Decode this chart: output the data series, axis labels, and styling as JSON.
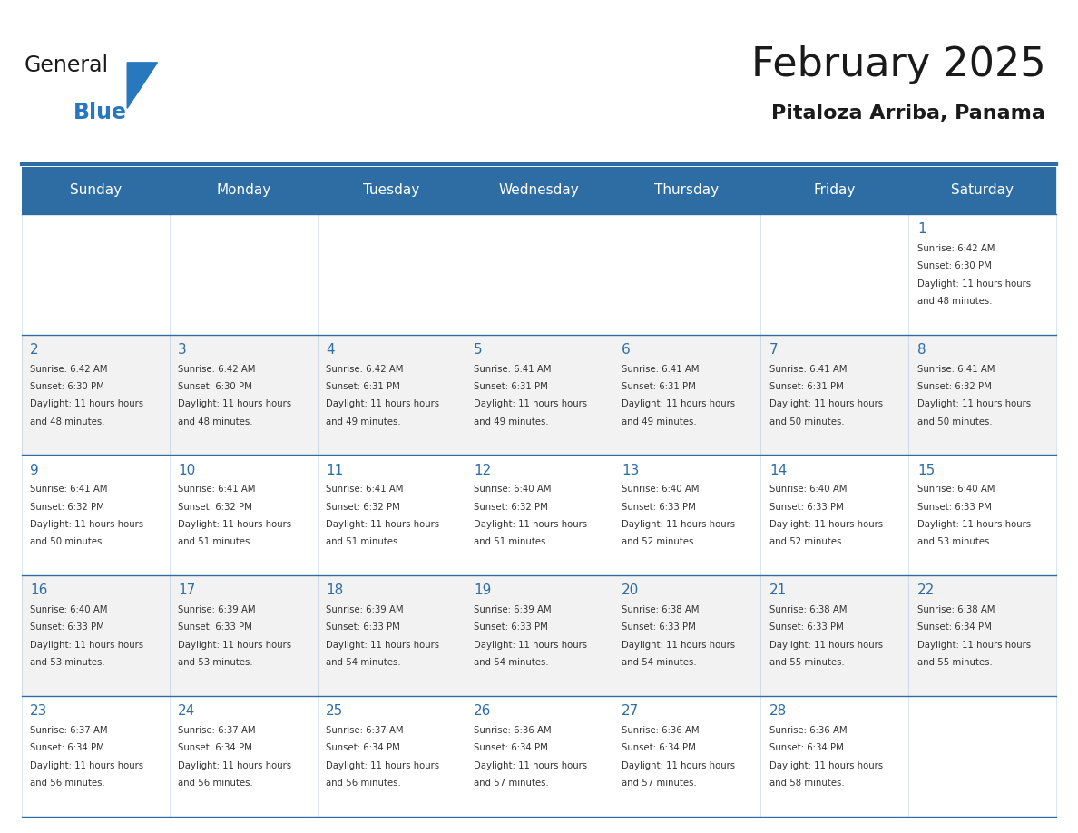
{
  "title": "February 2025",
  "subtitle": "Pitaloza Arriba, Panama",
  "days_of_week": [
    "Sunday",
    "Monday",
    "Tuesday",
    "Wednesday",
    "Thursday",
    "Friday",
    "Saturday"
  ],
  "header_bg": "#2E6DA4",
  "header_text": "#FFFFFF",
  "bg_color": "#FFFFFF",
  "cell_bg_odd": "#F2F2F2",
  "cell_bg_even": "#FFFFFF",
  "line_color": "#2E6DA4",
  "title_color": "#1a1a1a",
  "subtitle_color": "#1a1a1a",
  "text_color": "#333333",
  "day_number_color": "#2E6DA4",
  "calendar": [
    [
      null,
      null,
      null,
      null,
      null,
      null,
      {
        "day": 1,
        "sunrise": "6:42 AM",
        "sunset": "6:30 PM",
        "daylight": "11 hours and 48 minutes"
      }
    ],
    [
      {
        "day": 2,
        "sunrise": "6:42 AM",
        "sunset": "6:30 PM",
        "daylight": "11 hours and 48 minutes"
      },
      {
        "day": 3,
        "sunrise": "6:42 AM",
        "sunset": "6:30 PM",
        "daylight": "11 hours and 48 minutes"
      },
      {
        "day": 4,
        "sunrise": "6:42 AM",
        "sunset": "6:31 PM",
        "daylight": "11 hours and 49 minutes"
      },
      {
        "day": 5,
        "sunrise": "6:41 AM",
        "sunset": "6:31 PM",
        "daylight": "11 hours and 49 minutes"
      },
      {
        "day": 6,
        "sunrise": "6:41 AM",
        "sunset": "6:31 PM",
        "daylight": "11 hours and 49 minutes"
      },
      {
        "day": 7,
        "sunrise": "6:41 AM",
        "sunset": "6:31 PM",
        "daylight": "11 hours and 50 minutes"
      },
      {
        "day": 8,
        "sunrise": "6:41 AM",
        "sunset": "6:32 PM",
        "daylight": "11 hours and 50 minutes"
      }
    ],
    [
      {
        "day": 9,
        "sunrise": "6:41 AM",
        "sunset": "6:32 PM",
        "daylight": "11 hours and 50 minutes"
      },
      {
        "day": 10,
        "sunrise": "6:41 AM",
        "sunset": "6:32 PM",
        "daylight": "11 hours and 51 minutes"
      },
      {
        "day": 11,
        "sunrise": "6:41 AM",
        "sunset": "6:32 PM",
        "daylight": "11 hours and 51 minutes"
      },
      {
        "day": 12,
        "sunrise": "6:40 AM",
        "sunset": "6:32 PM",
        "daylight": "11 hours and 51 minutes"
      },
      {
        "day": 13,
        "sunrise": "6:40 AM",
        "sunset": "6:33 PM",
        "daylight": "11 hours and 52 minutes"
      },
      {
        "day": 14,
        "sunrise": "6:40 AM",
        "sunset": "6:33 PM",
        "daylight": "11 hours and 52 minutes"
      },
      {
        "day": 15,
        "sunrise": "6:40 AM",
        "sunset": "6:33 PM",
        "daylight": "11 hours and 53 minutes"
      }
    ],
    [
      {
        "day": 16,
        "sunrise": "6:40 AM",
        "sunset": "6:33 PM",
        "daylight": "11 hours and 53 minutes"
      },
      {
        "day": 17,
        "sunrise": "6:39 AM",
        "sunset": "6:33 PM",
        "daylight": "11 hours and 53 minutes"
      },
      {
        "day": 18,
        "sunrise": "6:39 AM",
        "sunset": "6:33 PM",
        "daylight": "11 hours and 54 minutes"
      },
      {
        "day": 19,
        "sunrise": "6:39 AM",
        "sunset": "6:33 PM",
        "daylight": "11 hours and 54 minutes"
      },
      {
        "day": 20,
        "sunrise": "6:38 AM",
        "sunset": "6:33 PM",
        "daylight": "11 hours and 54 minutes"
      },
      {
        "day": 21,
        "sunrise": "6:38 AM",
        "sunset": "6:33 PM",
        "daylight": "11 hours and 55 minutes"
      },
      {
        "day": 22,
        "sunrise": "6:38 AM",
        "sunset": "6:34 PM",
        "daylight": "11 hours and 55 minutes"
      }
    ],
    [
      {
        "day": 23,
        "sunrise": "6:37 AM",
        "sunset": "6:34 PM",
        "daylight": "11 hours and 56 minutes"
      },
      {
        "day": 24,
        "sunrise": "6:37 AM",
        "sunset": "6:34 PM",
        "daylight": "11 hours and 56 minutes"
      },
      {
        "day": 25,
        "sunrise": "6:37 AM",
        "sunset": "6:34 PM",
        "daylight": "11 hours and 56 minutes"
      },
      {
        "day": 26,
        "sunrise": "6:36 AM",
        "sunset": "6:34 PM",
        "daylight": "11 hours and 57 minutes"
      },
      {
        "day": 27,
        "sunrise": "6:36 AM",
        "sunset": "6:34 PM",
        "daylight": "11 hours and 57 minutes"
      },
      {
        "day": 28,
        "sunrise": "6:36 AM",
        "sunset": "6:34 PM",
        "daylight": "11 hours and 58 minutes"
      },
      null
    ]
  ],
  "logo_general_color": "#1a1a1a",
  "logo_blue_color": "#2878BE",
  "logo_triangle_color": "#2878BE"
}
